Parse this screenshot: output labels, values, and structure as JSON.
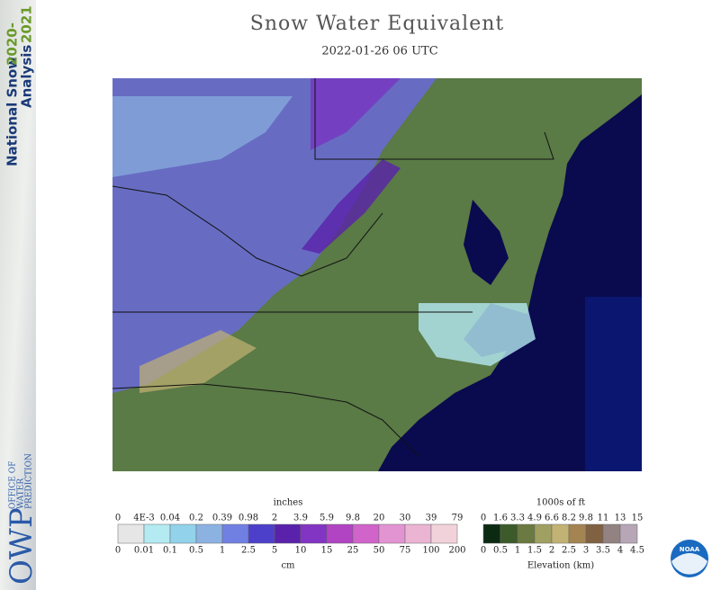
{
  "sidebar": {
    "line1": "National Snow",
    "line1b": "2020-",
    "line2": "Analysis",
    "line2b": "2021",
    "logo": "OWP",
    "org": [
      "OFFICE OF",
      "WATER",
      "PREDICTION"
    ]
  },
  "header": {
    "title": "Snow Water Equivalent",
    "subtitle": "2022-01-26 06 UTC"
  },
  "snow_legend": {
    "unit_top": "inches",
    "top_labels": [
      "0",
      "4E-3",
      "0.04",
      "0.2",
      "0.39",
      "0.98",
      "2",
      "3.9",
      "5.9",
      "9.8",
      "20",
      "30",
      "39",
      "79"
    ],
    "bottom_labels": [
      "0",
      "0.01",
      "0.1",
      "0.5",
      "1",
      "2.5",
      "5",
      "10",
      "15",
      "25",
      "50",
      "75",
      "100",
      "200"
    ],
    "unit_bottom": "cm",
    "colors": [
      "#e6e6e6",
      "#b4eaf2",
      "#92d2ea",
      "#8cb2e2",
      "#7080e2",
      "#4c40ca",
      "#5a22aa",
      "#8234c2",
      "#b044c2",
      "#d064ca",
      "#e294d2",
      "#eab4d2",
      "#f2d2da"
    ]
  },
  "elevation_legend": {
    "unit_top": "1000s of ft",
    "top_labels": [
      "0",
      "1.6",
      "3.3",
      "4.9",
      "6.6",
      "8.2",
      "9.8",
      "11",
      "13",
      "15"
    ],
    "bottom_labels": [
      "0",
      "0.5",
      "1",
      "1.5",
      "2",
      "2.5",
      "3",
      "3.5",
      "4",
      "4.5"
    ],
    "unit_bottom": "Elevation (km)",
    "colors": [
      "#0c2a12",
      "#3c5a2a",
      "#6a7a40",
      "#a0a062",
      "#c2b274",
      "#a48452",
      "#806242",
      "#928282",
      "#b6a6b6"
    ]
  },
  "noaa_logo": "NOAA"
}
